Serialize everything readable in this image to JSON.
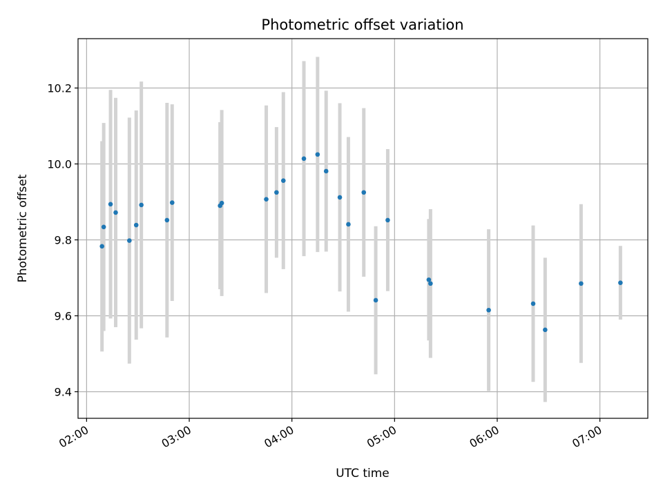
{
  "chart_data": {
    "type": "scatter",
    "title": "Photometric offset variation",
    "xlabel": "UTC time",
    "ylabel": "Photometric offset",
    "x_axis_type": "time",
    "xlim": [
      "01:55",
      "07:28"
    ],
    "ylim": [
      9.33,
      10.33
    ],
    "xticks": [
      "02:00",
      "03:00",
      "04:00",
      "05:00",
      "06:00",
      "07:00"
    ],
    "yticks": [
      9.4,
      9.6,
      9.8,
      10.0,
      10.2
    ],
    "ytick_labels": [
      "9.4",
      "9.6",
      "9.8",
      "10.0",
      "10.2"
    ],
    "grid": true,
    "colors": {
      "points": "#1f77b4",
      "errorbars": "#d3d3d3",
      "grid": "#b0b0b0"
    },
    "series": [
      {
        "points": [
          {
            "x": "02:09",
            "y": 9.783,
            "err": 0.277
          },
          {
            "x": "02:10",
            "y": 9.834,
            "err": 0.274
          },
          {
            "x": "02:14",
            "y": 9.894,
            "err": 0.301
          },
          {
            "x": "02:17",
            "y": 9.872,
            "err": 0.302
          },
          {
            "x": "02:25",
            "y": 9.798,
            "err": 0.324
          },
          {
            "x": "02:29",
            "y": 9.839,
            "err": 0.302
          },
          {
            "x": "02:32",
            "y": 9.892,
            "err": 0.325
          },
          {
            "x": "02:47",
            "y": 9.852,
            "err": 0.309
          },
          {
            "x": "02:50",
            "y": 9.898,
            "err": 0.259
          },
          {
            "x": "03:18",
            "y": 9.89,
            "err": 0.22
          },
          {
            "x": "03:19",
            "y": 9.897,
            "err": 0.245
          },
          {
            "x": "03:45",
            "y": 9.907,
            "err": 0.247
          },
          {
            "x": "03:51",
            "y": 9.925,
            "err": 0.172
          },
          {
            "x": "03:55",
            "y": 9.956,
            "err": 0.233
          },
          {
            "x": "04:07",
            "y": 10.014,
            "err": 0.257
          },
          {
            "x": "04:15",
            "y": 10.025,
            "err": 0.257
          },
          {
            "x": "04:20",
            "y": 9.981,
            "err": 0.212
          },
          {
            "x": "04:28",
            "y": 9.912,
            "err": 0.248
          },
          {
            "x": "04:33",
            "y": 9.841,
            "err": 0.23
          },
          {
            "x": "04:42",
            "y": 9.925,
            "err": 0.222
          },
          {
            "x": "04:49",
            "y": 9.641,
            "err": 0.195
          },
          {
            "x": "04:56",
            "y": 9.852,
            "err": 0.187
          },
          {
            "x": "05:20",
            "y": 9.695,
            "err": 0.16
          },
          {
            "x": "05:21",
            "y": 9.685,
            "err": 0.196
          },
          {
            "x": "05:55",
            "y": 9.615,
            "err": 0.213
          },
          {
            "x": "06:21",
            "y": 9.632,
            "err": 0.206
          },
          {
            "x": "06:28",
            "y": 9.563,
            "err": 0.19
          },
          {
            "x": "06:49",
            "y": 9.685,
            "err": 0.209
          },
          {
            "x": "07:12",
            "y": 9.687,
            "err": 0.097
          }
        ]
      }
    ]
  }
}
